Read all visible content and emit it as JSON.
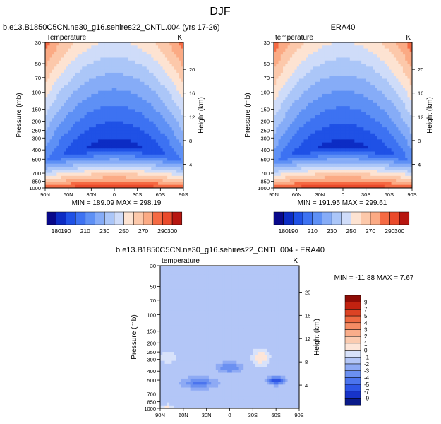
{
  "figure_title": "DJF",
  "colors": {
    "blue_scale": [
      "#08088a",
      "#0c2cc4",
      "#1f51e6",
      "#3d72f2",
      "#5e90f5",
      "#86acf7",
      "#abc6f8",
      "#cfdcf9",
      "#e9eefa"
    ],
    "red_scale": [
      "#fde3d2",
      "#fcc8aa",
      "#fbaa84",
      "#f98a60",
      "#f56a43",
      "#ea4a2b",
      "#d62b1b",
      "#b71610",
      "#8a0a06"
    ]
  },
  "chart_data": [
    {
      "type": "contour",
      "panel": "model",
      "title": "b.e13.B1850C5CN.ne30_g16.sehires22_CNTL.004 (yrs 17-26)",
      "left_label": "Temperature",
      "right_label": "K",
      "ylabel": "Pressure (mb)",
      "ylabel_right": "Height (km)",
      "x_ticks": [
        "90N",
        "60N",
        "30N",
        "0",
        "30S",
        "60S",
        "90S"
      ],
      "y_ticks": [
        "30",
        "50",
        "70",
        "100",
        "150",
        "200",
        "250",
        "300",
        "400",
        "500",
        "700",
        "850",
        "1000"
      ],
      "y_ticks_right": [
        "20",
        "16",
        "12",
        "8",
        "4"
      ],
      "stats": "MIN = 189.09   MAX = 298.19",
      "min": 189.09,
      "max": 298.19,
      "colorbar_labels": [
        "180",
        "190",
        "210",
        "230",
        "250",
        "270",
        "290",
        "300"
      ]
    },
    {
      "type": "contour",
      "panel": "obs",
      "title": "ERA40",
      "left_label": "temperature",
      "right_label": "K",
      "ylabel": "Pressure (mb)",
      "ylabel_right": "Height (km)",
      "x_ticks": [
        "90N",
        "60N",
        "30N",
        "0",
        "30S",
        "60S",
        "90S"
      ],
      "y_ticks": [
        "30",
        "50",
        "70",
        "100",
        "150",
        "200",
        "250",
        "300",
        "400",
        "500",
        "700",
        "850",
        "1000"
      ],
      "y_ticks_right": [
        "20",
        "16",
        "12",
        "8",
        "4"
      ],
      "stats": "MIN = 191.95   MAX = 299.61",
      "min": 191.95,
      "max": 299.61,
      "colorbar_labels": [
        "180",
        "190",
        "210",
        "230",
        "250",
        "270",
        "290",
        "300"
      ]
    },
    {
      "type": "contour",
      "panel": "difference",
      "title": "b.e13.B1850C5CN.ne30_g16.sehires22_CNTL.004 - ERA40",
      "left_label": "temperature",
      "right_label": "K",
      "ylabel": "Pressure (mb)",
      "ylabel_right": "Height (km)",
      "x_ticks": [
        "90N",
        "60N",
        "30N",
        "0",
        "30S",
        "60S",
        "90S"
      ],
      "y_ticks": [
        "30",
        "50",
        "70",
        "100",
        "150",
        "200",
        "250",
        "300",
        "400",
        "500",
        "700",
        "850",
        "1000"
      ],
      "y_ticks_right": [
        "20",
        "16",
        "12",
        "8",
        "4"
      ],
      "stats": "MIN = -11.88   MAX =   7.67",
      "min": -11.88,
      "max": 7.67,
      "colorbar_labels": [
        "9",
        "7",
        "5",
        "4",
        "3",
        "2",
        "1",
        "0",
        "-1",
        "-2",
        "-3",
        "-4",
        "-5",
        "-7",
        "-9"
      ]
    }
  ]
}
